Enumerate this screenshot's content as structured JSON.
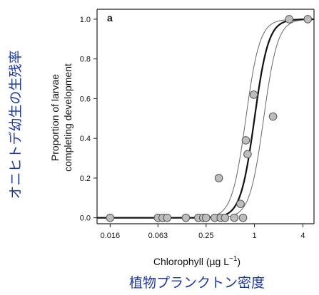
{
  "chart_data": {
    "type": "scatter",
    "panel_letter": "a",
    "xlabel_main": "Chlorophyll (µg L",
    "xlabel_sup": "−1",
    "xlabel_close": ")",
    "ylabel_lines": [
      "Proportion of larvae",
      "completing development"
    ],
    "xscale": "log",
    "xlim": [
      0.011,
      5.5
    ],
    "ylim": [
      -0.03,
      1.05
    ],
    "x_ticks": [
      0.016,
      0.063,
      0.25,
      1,
      4
    ],
    "x_tick_labels": [
      "0.016",
      "0.063",
      "0.25",
      "1",
      "4"
    ],
    "y_ticks": [
      0.0,
      0.2,
      0.4,
      0.6,
      0.8,
      1.0
    ],
    "y_tick_labels": [
      "0.0",
      "0.2",
      "0.4",
      "0.6",
      "0.8",
      "1.0"
    ],
    "grid": false,
    "points": [
      {
        "x": 0.016,
        "y": 0.0
      },
      {
        "x": 0.063,
        "y": 0.0
      },
      {
        "x": 0.072,
        "y": 0.0
      },
      {
        "x": 0.082,
        "y": 0.0
      },
      {
        "x": 0.14,
        "y": 0.0
      },
      {
        "x": 0.2,
        "y": 0.0
      },
      {
        "x": 0.23,
        "y": 0.0
      },
      {
        "x": 0.25,
        "y": 0.0
      },
      {
        "x": 0.32,
        "y": 0.0
      },
      {
        "x": 0.38,
        "y": 0.0
      },
      {
        "x": 0.43,
        "y": 0.0
      },
      {
        "x": 0.56,
        "y": 0.0
      },
      {
        "x": 0.72,
        "y": 0.0
      },
      {
        "x": 0.36,
        "y": 0.2
      },
      {
        "x": 0.67,
        "y": 0.07
      },
      {
        "x": 0.78,
        "y": 0.39
      },
      {
        "x": 0.82,
        "y": 0.32
      },
      {
        "x": 0.98,
        "y": 0.62
      },
      {
        "x": 1.7,
        "y": 0.51
      },
      {
        "x": 2.7,
        "y": 1.0
      },
      {
        "x": 4.6,
        "y": 1.0
      }
    ],
    "fit_curve": {
      "midpoint": 1.0,
      "slope": 5.0
    },
    "ci_lower": {
      "midpoint": 1.3,
      "slope": 5.0
    },
    "ci_upper": {
      "midpoint": 0.78,
      "slope": 5.0
    },
    "colors": {
      "point_fill": "#bdbdbd",
      "point_stroke": "#555555",
      "fit_line": "#111111",
      "ci_line": "#666666",
      "axis": "#222222",
      "japanese_label": "#1f3a9e"
    }
  },
  "annotations": {
    "y_japanese": "オニヒトデ幼生の生残率",
    "x_japanese": "植物プランクトン密度"
  }
}
